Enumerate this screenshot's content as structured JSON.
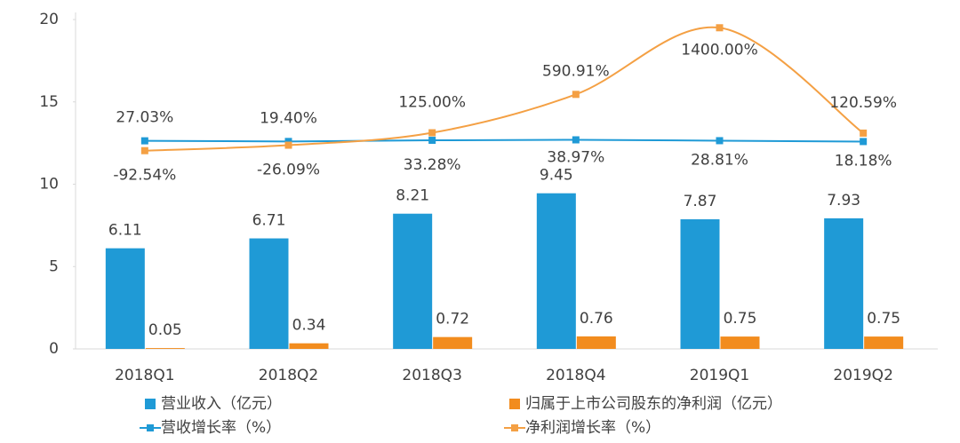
{
  "chart_data": {
    "type": "bar-line",
    "categories": [
      "2018Q1",
      "2018Q2",
      "2018Q3",
      "2018Q4",
      "2019Q1",
      "2019Q2"
    ],
    "ylim": [
      0,
      20
    ],
    "yticks": [
      0,
      5,
      10,
      15,
      20
    ],
    "y2lim": [
      -2500,
      1500
    ],
    "series": [
      {
        "name": "营业收入（亿元）",
        "type": "bar",
        "color": "#1f9ad6",
        "values": [
          6.11,
          6.71,
          8.21,
          9.45,
          7.87,
          7.93
        ]
      },
      {
        "name": "归属于上市公司股东的净利润（亿元）",
        "type": "bar",
        "color": "#f28c1e",
        "values": [
          0.05,
          0.34,
          0.72,
          0.76,
          0.75,
          0.75
        ]
      },
      {
        "name": "营收增长率（%）",
        "type": "line",
        "axis": "y2",
        "color": "#1f9ad6",
        "values": [
          27.03,
          19.4,
          33.28,
          38.97,
          28.81,
          18.18
        ],
        "value_labels": [
          "27.03%",
          "19.40%",
          "33.28%",
          "38.97%",
          "28.81%",
          "18.18%"
        ]
      },
      {
        "name": "净利润增长率（%）",
        "type": "line",
        "axis": "y2",
        "color": "#f4a044",
        "smooth": true,
        "values": [
          -92.54,
          -26.09,
          125.0,
          590.91,
          1400.0,
          120.59
        ],
        "value_labels": [
          "-92.54%",
          "-26.09%",
          "125.00%",
          "590.91%",
          "1400.00%",
          "120.59%"
        ]
      }
    ]
  }
}
